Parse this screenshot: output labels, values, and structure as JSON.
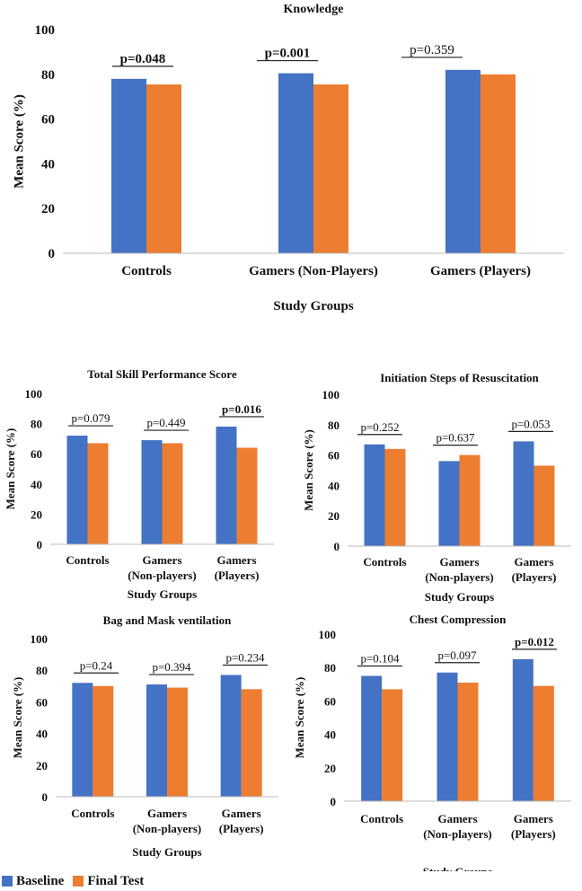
{
  "colors": {
    "baseline": "#4472C4",
    "final": "#ED7D31"
  },
  "legend": {
    "baseline": "Baseline",
    "final": "Final Test"
  },
  "chart_data": [
    {
      "type": "bar",
      "title": "Knowledge",
      "xlabel": "Study Groups",
      "ylabel": "Mean Score (%)",
      "ylim": [
        0,
        100
      ],
      "yticks": [
        0,
        20,
        40,
        60,
        80,
        100
      ],
      "categories": [
        [
          "Controls"
        ],
        [
          "Gamers (Non-Players)"
        ],
        [
          "Gamers (Players)"
        ]
      ],
      "series": [
        {
          "name": "Baseline",
          "values": [
            78,
            80.5,
            82
          ]
        },
        {
          "name": "Final Test",
          "values": [
            75.5,
            75.5,
            80
          ]
        }
      ],
      "pvalues": [
        {
          "text": "p=0.048",
          "bold": true
        },
        {
          "text": "p=0.001",
          "bold": true
        },
        {
          "text": "p=0.359",
          "bold": false
        }
      ]
    },
    {
      "type": "bar",
      "title": "Total Skill Performance Score",
      "xlabel": "Study Groups",
      "ylabel": "Mean Score (%)",
      "ylim": [
        0,
        100
      ],
      "yticks": [
        0,
        20,
        40,
        60,
        80,
        100
      ],
      "categories": [
        [
          "Controls"
        ],
        [
          "Gamers",
          "(Non-players)"
        ],
        [
          "Gamers",
          "(Players)"
        ]
      ],
      "series": [
        {
          "name": "Baseline",
          "values": [
            72,
            69,
            78
          ]
        },
        {
          "name": "Final Test",
          "values": [
            67,
            67,
            64
          ]
        }
      ],
      "pvalues": [
        {
          "text": "p=0.079",
          "bold": false
        },
        {
          "text": "p=0.449",
          "bold": false
        },
        {
          "text": "p=0.016",
          "bold": true
        }
      ]
    },
    {
      "type": "bar",
      "title": "Initiation  Steps of Resuscitation",
      "xlabel": "Study Groups",
      "ylabel": "Mean Score (%)",
      "ylim": [
        0,
        100
      ],
      "yticks": [
        0,
        20,
        40,
        60,
        80,
        100
      ],
      "categories": [
        [
          "Controls"
        ],
        [
          "Gamers",
          "(Non-players)"
        ],
        [
          "Gamers",
          "(Players)"
        ]
      ],
      "series": [
        {
          "name": "Baseline",
          "values": [
            67,
            56,
            69
          ]
        },
        {
          "name": "Final Test",
          "values": [
            64,
            60,
            53
          ]
        }
      ],
      "pvalues": [
        {
          "text": "p=0.252",
          "bold": false
        },
        {
          "text": "p=0.637",
          "bold": false
        },
        {
          "text": "p=0.053",
          "bold": false
        }
      ]
    },
    {
      "type": "bar",
      "title": "Bag and Mask ventilation",
      "xlabel": "Study Groups",
      "ylabel": "Mean Score (%)",
      "ylim": [
        0,
        100
      ],
      "yticks": [
        0,
        20,
        40,
        60,
        80,
        100
      ],
      "categories": [
        [
          "Controls"
        ],
        [
          "Gamers",
          "(Non-players)"
        ],
        [
          "Gamers",
          "(Players)"
        ]
      ],
      "series": [
        {
          "name": "Baseline",
          "values": [
            72,
            71,
            77
          ]
        },
        {
          "name": "Final Test",
          "values": [
            70,
            69,
            68
          ]
        }
      ],
      "pvalues": [
        {
          "text": "p=0.24",
          "bold": false
        },
        {
          "text": "p=0.394",
          "bold": false
        },
        {
          "text": "p=0.234",
          "bold": false
        }
      ]
    },
    {
      "type": "bar",
      "title": "Chest Compression",
      "xlabel": "Study Groups",
      "ylabel": "Mean Score (%)",
      "ylim": [
        0,
        100
      ],
      "yticks": [
        0,
        20,
        40,
        60,
        80,
        100
      ],
      "categories": [
        [
          "Controls"
        ],
        [
          "Gamers",
          "(Non-players)"
        ],
        [
          "Gamers",
          "(Players)"
        ]
      ],
      "series": [
        {
          "name": "Baseline",
          "values": [
            75,
            77,
            85
          ]
        },
        {
          "name": "Final Test",
          "values": [
            67,
            71,
            69
          ]
        }
      ],
      "pvalues": [
        {
          "text": "p=0.104",
          "bold": false
        },
        {
          "text": "p=0.097",
          "bold": false
        },
        {
          "text": "p=0.012",
          "bold": true
        }
      ]
    }
  ]
}
